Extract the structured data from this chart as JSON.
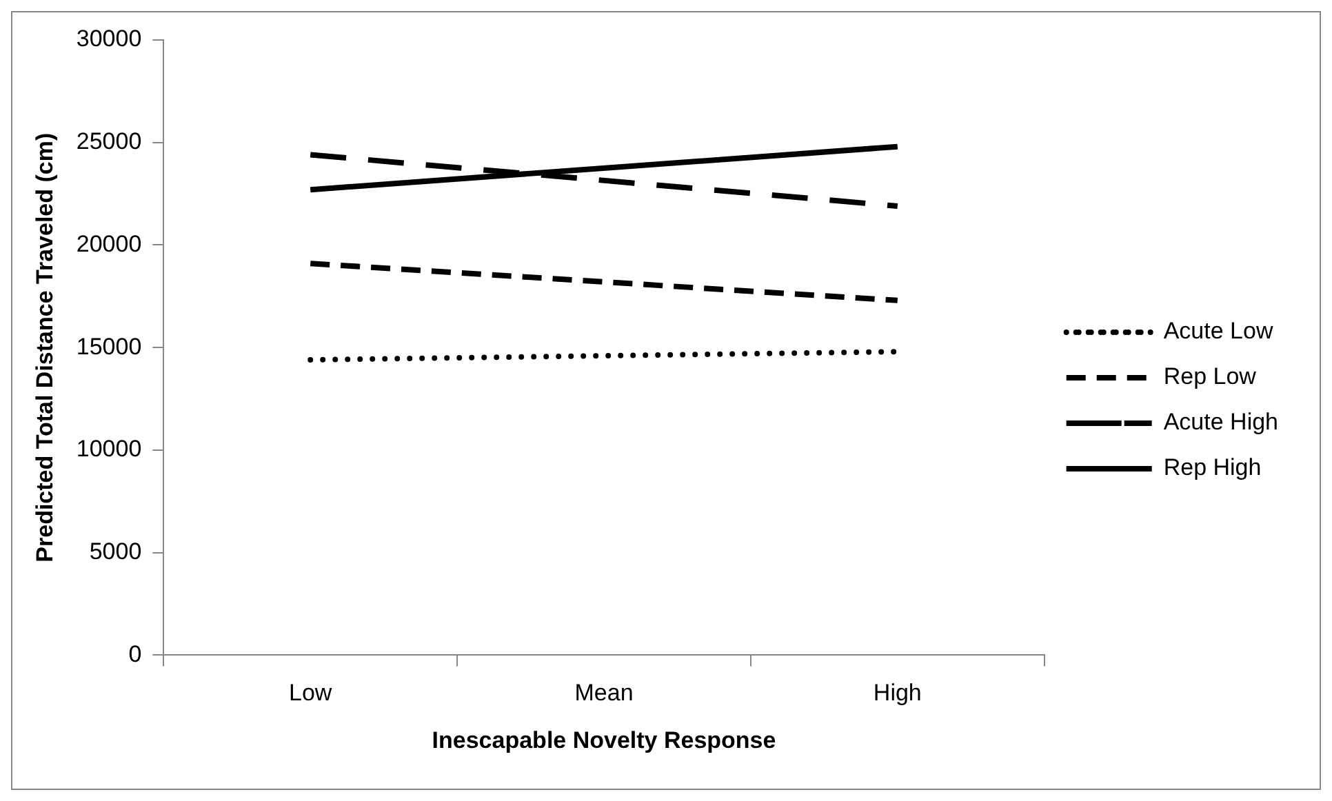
{
  "chart_data": {
    "type": "line",
    "xlabel": "Inescapable Novelty Response",
    "ylabel": "Predicted Total Distance Traveled (cm)",
    "categories": [
      "Low",
      "Mean",
      "High"
    ],
    "ylim": [
      0,
      30000
    ],
    "yticks": [
      0,
      5000,
      10000,
      15000,
      20000,
      25000,
      30000
    ],
    "grid": false,
    "legend": "right",
    "marker": "none",
    "series": [
      {
        "name": "Acute Low",
        "color": "#000000",
        "line_style": "dotted",
        "values": [
          14400,
          null,
          14800
        ]
      },
      {
        "name": "Rep Low",
        "color": "#000000",
        "line_style": "dashed",
        "values": [
          19100,
          null,
          17300
        ]
      },
      {
        "name": "Acute High",
        "color": "#000000",
        "line_style": "dashed",
        "values": [
          24400,
          null,
          21900
        ]
      },
      {
        "name": "Rep High",
        "color": "#000000",
        "line_style": "solid",
        "values": [
          22700,
          null,
          24800
        ]
      }
    ]
  }
}
